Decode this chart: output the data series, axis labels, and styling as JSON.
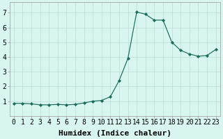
{
  "xlabel": "Humidex (Indice chaleur)",
  "x_values": [
    0,
    1,
    2,
    3,
    4,
    5,
    6,
    7,
    8,
    9,
    10,
    11,
    12,
    13,
    14,
    15,
    16,
    17,
    18,
    19,
    20,
    21,
    22,
    23
  ],
  "y_values": [
    0.85,
    0.85,
    0.82,
    0.75,
    0.75,
    0.78,
    0.75,
    0.78,
    0.88,
    1.0,
    1.05,
    1.3,
    2.4,
    3.9,
    7.05,
    6.9,
    6.5,
    6.5,
    5.0,
    4.45,
    4.2,
    4.05,
    4.1,
    4.5
  ],
  "line_color": "#1a6b5a",
  "marker_color": "#1a6b5a",
  "bg_color": "#d8f5f0",
  "grid_color": "#b8ddd8",
  "ylim": [
    0,
    7.7
  ],
  "xlim": [
    -0.5,
    23.5
  ],
  "yticks": [
    1,
    2,
    3,
    4,
    5,
    6,
    7
  ],
  "xticks": [
    0,
    1,
    2,
    3,
    4,
    5,
    6,
    7,
    8,
    9,
    10,
    11,
    12,
    13,
    14,
    15,
    16,
    17,
    18,
    19,
    20,
    21,
    22,
    23
  ],
  "label_fontsize": 8,
  "tick_fontsize": 7
}
